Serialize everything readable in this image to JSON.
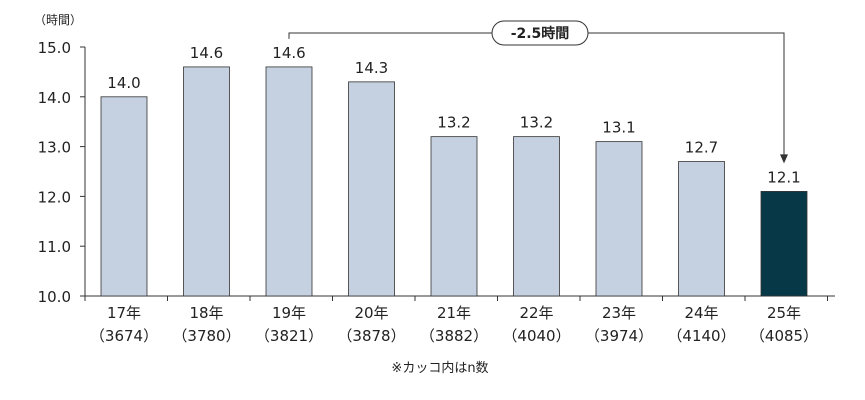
{
  "chart_data": {
    "type": "bar",
    "yunit": "（時間）",
    "categories": [
      "17年",
      "18年",
      "19年",
      "20年",
      "21年",
      "22年",
      "23年",
      "24年",
      "25年"
    ],
    "n_labels": [
      "（3674）",
      "（3780）",
      "（3821）",
      "（3878）",
      "（3882）",
      "（4040）",
      "（3974）",
      "（4140）",
      "（4085）"
    ],
    "values": [
      14.0,
      14.6,
      14.6,
      14.3,
      13.2,
      13.2,
      13.1,
      12.7,
      12.1
    ],
    "value_labels": [
      "14.0",
      "14.6",
      "14.6",
      "14.3",
      "13.2",
      "13.2",
      "13.1",
      "12.7",
      "12.1"
    ],
    "ylim": [
      10.0,
      15.0
    ],
    "yticks": [
      10.0,
      11.0,
      12.0,
      13.0,
      14.0,
      15.0
    ],
    "ytick_labels": [
      "10.0",
      "11.0",
      "12.0",
      "13.0",
      "14.0",
      "15.0"
    ],
    "annotation": {
      "text": "-2.5時間",
      "from_category": "19年",
      "to_category": "25年"
    },
    "footnote": "※カッコ内はn数",
    "grid": false,
    "colors": {
      "bar": "#c5d0e0",
      "highlight_bar": "#063848",
      "bar_stroke": "#333333",
      "highlight_index": 8
    }
  }
}
